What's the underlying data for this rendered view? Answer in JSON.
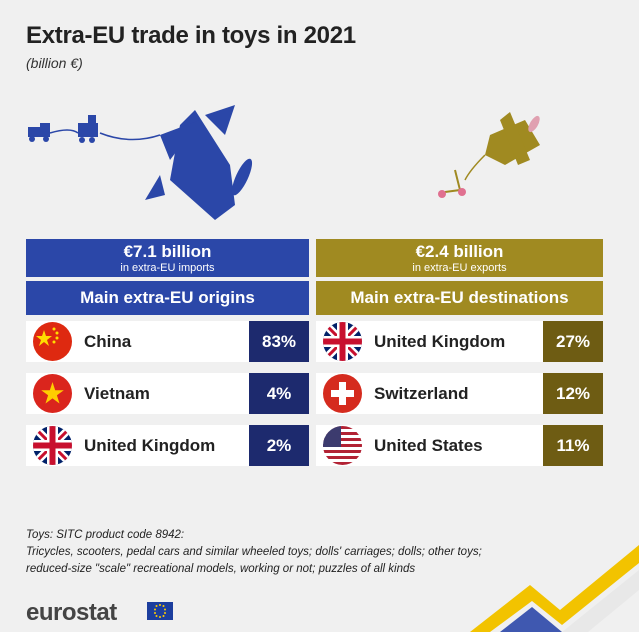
{
  "title": "Extra-EU trade in toys in 2021",
  "subtitle": "(billion €)",
  "imports": {
    "amount": "€7.1 billion",
    "amount_sub": "in extra-EU imports",
    "header": "Main extra-EU origins",
    "rows": [
      {
        "country": "China",
        "pct": "83%"
      },
      {
        "country": "Vietnam",
        "pct": "4%"
      },
      {
        "country": "United Kingdom",
        "pct": "2%"
      }
    ]
  },
  "exports": {
    "amount": "€2.4 billion",
    "amount_sub": "in extra-EU exports",
    "header": "Main extra-EU destinations",
    "rows": [
      {
        "country": "United Kingdom",
        "pct": "27%"
      },
      {
        "country": "Switzerland",
        "pct": "12%"
      },
      {
        "country": "United States",
        "pct": "11%"
      }
    ]
  },
  "note": {
    "line1": "Toys: SITC product code 8942:",
    "line2": "Tricycles, scooters, pedal cars and similar wheeled toys; dolls' carriages; dolls; other toys;",
    "line3": "reduced-size \"scale\" recreational models, working or not; puzzles of all kinds"
  },
  "logo": "eurostat",
  "colors": {
    "imports": "#2b47a8",
    "imports_dark": "#1d2a6e",
    "exports": "#a08a21",
    "exports_dark": "#6e5c13"
  },
  "chart_data": {
    "type": "table",
    "title": "Extra-EU trade in toys in 2021",
    "unit": "billion €",
    "imports_total": 7.1,
    "exports_total": 2.4,
    "series": [
      {
        "name": "Main extra-EU origins",
        "categories": [
          "China",
          "Vietnam",
          "United Kingdom"
        ],
        "values": [
          83,
          4,
          2
        ]
      },
      {
        "name": "Main extra-EU destinations",
        "categories": [
          "United Kingdom",
          "Switzerland",
          "United States"
        ],
        "values": [
          27,
          12,
          11
        ]
      }
    ]
  }
}
